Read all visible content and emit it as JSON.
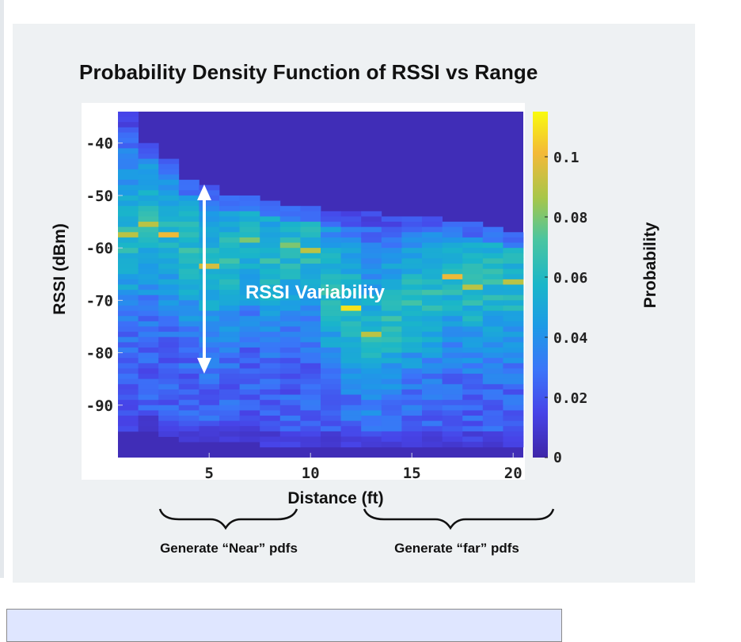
{
  "title": "Probability Density Function of RSSI vs Range",
  "chart_data": {
    "type": "heatmap",
    "title": "Probability Density Function of RSSI vs Range",
    "xlabel": "Distance (ft)",
    "ylabel": "RSSI (dBm)",
    "colorbar_label": "Probability",
    "xlim": [
      0.5,
      20.5
    ],
    "ylim": [
      -100,
      -34
    ],
    "x_ticks": [
      "5",
      "10",
      "15",
      "20"
    ],
    "y_ticks": [
      "-40",
      "-50",
      "-60",
      "-70",
      "-80",
      "-90"
    ],
    "colorbar_ticks": [
      "0",
      "0.02",
      "0.04",
      "0.06",
      "0.08",
      "0.1"
    ],
    "color_range": [
      0,
      0.115
    ],
    "x": [
      1,
      2,
      3,
      4,
      5,
      6,
      7,
      8,
      9,
      10,
      11,
      12,
      13,
      14,
      15,
      16,
      17,
      18,
      19,
      20
    ],
    "distribution": {
      "mode_rssi": [
        -57,
        -55,
        -57,
        -60,
        -63,
        -62,
        -58,
        -62,
        -59,
        -60,
        -68,
        -71,
        -76,
        -73,
        -70,
        -68,
        -65,
        -67,
        -66,
        -66
      ],
      "upper_edge_rssi": [
        -34,
        -40,
        -43,
        -47,
        -48,
        -50,
        -50,
        -51,
        -52,
        -52,
        -53,
        -53,
        -53,
        -54,
        -54,
        -54,
        -55,
        -55,
        -56,
        -57
      ],
      "lower_edge_rssi": [
        -95,
        -95,
        -96,
        -97,
        -97,
        -97,
        -97,
        -98,
        -98,
        -98,
        -98,
        -98,
        -98,
        -98,
        -98,
        -98,
        -98,
        -98,
        -98,
        -98
      ],
      "peak_probability": [
        0.09,
        0.09,
        0.1,
        0.07,
        0.095,
        0.07,
        0.08,
        0.07,
        0.08,
        0.09,
        0.07,
        0.11,
        0.09,
        0.07,
        0.07,
        0.07,
        0.1,
        0.09,
        0.07,
        0.09
      ]
    },
    "annotations": [
      {
        "text": "RSSI Variability",
        "arrow": "vertical double-headed",
        "x": 5,
        "y_range": [
          -48,
          -83
        ]
      }
    ]
  },
  "braces": {
    "near_label": "Generate “Near” pdfs",
    "far_label": "Generate “far” pdfs"
  }
}
